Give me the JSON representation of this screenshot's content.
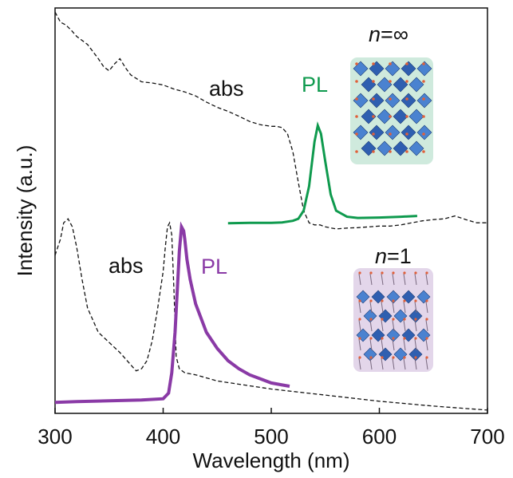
{
  "chart_data": {
    "type": "line",
    "title": "",
    "xlabel": "Wavelength (nm)",
    "ylabel": "Intensity (a.u.)",
    "xlim": [
      300,
      700
    ],
    "ylim": [
      0,
      1
    ],
    "xticks": [
      300,
      400,
      500,
      600,
      700
    ],
    "grid": false,
    "legend": "none",
    "colors": {
      "abs": "#111111",
      "pl_inf": "#0f9a4e",
      "pl_1": "#8a3aa6",
      "axis": "#111111",
      "inset_inf_bg": "#cfeadd",
      "inset_1_bg": "#e3d6ea"
    },
    "series": [
      {
        "x": [
          300,
          305,
          310,
          315,
          320,
          330,
          340,
          345,
          350,
          355,
          360,
          365,
          370,
          380,
          390,
          400,
          410,
          420,
          430,
          440,
          450,
          460,
          470,
          480,
          490,
          500,
          505,
          510,
          515,
          520,
          525,
          530,
          535,
          540,
          545,
          550,
          560,
          570,
          580,
          590,
          600,
          610,
          620,
          630,
          640,
          650,
          660,
          670,
          680,
          690,
          700
        ],
        "y": [
          0.99,
          0.965,
          0.958,
          0.945,
          0.93,
          0.91,
          0.875,
          0.855,
          0.845,
          0.862,
          0.875,
          0.853,
          0.835,
          0.818,
          0.815,
          0.81,
          0.8,
          0.793,
          0.783,
          0.768,
          0.755,
          0.745,
          0.733,
          0.72,
          0.712,
          0.708,
          0.708,
          0.705,
          0.69,
          0.645,
          0.57,
          0.5,
          0.47,
          0.465,
          0.465,
          0.46,
          0.455,
          0.457,
          0.458,
          0.46,
          0.462,
          0.462,
          0.465,
          0.47,
          0.475,
          0.478,
          0.48,
          0.487,
          0.478,
          0.47,
          0.47
        ]
      },
      {
        "x": [
          460,
          480,
          500,
          510,
          520,
          525,
          530,
          535,
          540,
          543,
          546,
          550,
          555,
          560,
          570,
          580,
          600,
          620,
          635
        ],
        "y": [
          0.469,
          0.47,
          0.47,
          0.471,
          0.475,
          0.48,
          0.5,
          0.56,
          0.67,
          0.71,
          0.69,
          0.62,
          0.54,
          0.5,
          0.485,
          0.482,
          0.483,
          0.485,
          0.487
        ]
      },
      {
        "x": [
          300,
          305,
          308,
          312,
          316,
          320,
          325,
          330,
          340,
          350,
          360,
          370,
          375,
          380,
          385,
          390,
          395,
          400,
          402,
          404,
          406,
          408,
          410,
          412,
          415,
          420,
          430,
          450,
          500,
          550,
          600,
          650,
          700
        ],
        "y": [
          0.39,
          0.43,
          0.47,
          0.48,
          0.46,
          0.41,
          0.33,
          0.26,
          0.2,
          0.175,
          0.15,
          0.12,
          0.105,
          0.11,
          0.13,
          0.18,
          0.26,
          0.35,
          0.41,
          0.46,
          0.47,
          0.44,
          0.3,
          0.14,
          0.11,
          0.1,
          0.095,
          0.08,
          0.06,
          0.045,
          0.03,
          0.018,
          0.008
        ]
      },
      {
        "x": [
          300,
          320,
          350,
          380,
          400,
          405,
          408,
          411,
          413,
          415,
          417,
          419,
          420,
          422,
          425,
          430,
          440,
          450,
          460,
          470,
          480,
          490,
          500,
          510,
          517
        ],
        "y": [
          0.027,
          0.029,
          0.031,
          0.033,
          0.036,
          0.05,
          0.1,
          0.2,
          0.3,
          0.4,
          0.46,
          0.45,
          0.43,
          0.38,
          0.33,
          0.27,
          0.2,
          0.16,
          0.13,
          0.11,
          0.095,
          0.085,
          0.075,
          0.07,
          0.067
        ]
      }
    ],
    "annotations": [
      {
        "text": "abs"
      },
      {
        "text": "PL"
      },
      {
        "text": "abs"
      },
      {
        "text": "PL"
      }
    ],
    "panel_labels": [
      {
        "n": "n",
        "rest": "=∞"
      },
      {
        "n": "n",
        "rest": "=1"
      }
    ]
  }
}
